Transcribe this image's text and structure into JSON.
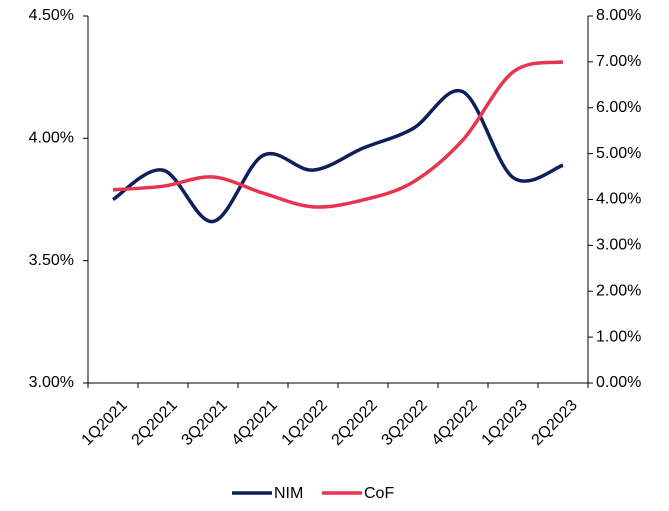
{
  "chart_data": {
    "type": "line",
    "categories": [
      "1Q2021",
      "2Q2021",
      "3Q2021",
      "4Q2021",
      "1Q2022",
      "2Q2022",
      "3Q2022",
      "4Q2022",
      "1Q2023",
      "2Q2023"
    ],
    "series": [
      {
        "name": "NIM",
        "color": "#0d1f5c",
        "values": [
          3.75,
          3.87,
          3.66,
          3.93,
          3.87,
          3.96,
          4.04,
          4.19,
          3.84,
          3.89
        ]
      },
      {
        "name": "CoF",
        "color": "#e8344e",
        "axis": "y2",
        "values": [
          4.21,
          4.29,
          4.49,
          4.14,
          3.84,
          3.99,
          4.38,
          5.3,
          6.78,
          7.0
        ]
      }
    ],
    "ylim": [
      3.0,
      4.5
    ],
    "yticks": [
      {
        "value": 3.0,
        "label": "3.00%"
      },
      {
        "value": 3.5,
        "label": "3.50%"
      },
      {
        "value": 4.0,
        "label": "4.00%"
      },
      {
        "value": 4.5,
        "label": "4.50%"
      }
    ],
    "y2lim": [
      0,
      8
    ],
    "y2ticks": [
      {
        "value": 0,
        "label": "0.00%"
      },
      {
        "value": 1,
        "label": "1.00%"
      },
      {
        "value": 2,
        "label": "2.00%"
      },
      {
        "value": 3,
        "label": "3.00%"
      },
      {
        "value": 4,
        "label": "4.00%"
      },
      {
        "value": 5,
        "label": "5.00%"
      },
      {
        "value": 6,
        "label": "6.00%"
      },
      {
        "value": 7,
        "label": "7.00%"
      },
      {
        "value": 8,
        "label": "8.00%"
      }
    ],
    "legend": "bottom"
  }
}
